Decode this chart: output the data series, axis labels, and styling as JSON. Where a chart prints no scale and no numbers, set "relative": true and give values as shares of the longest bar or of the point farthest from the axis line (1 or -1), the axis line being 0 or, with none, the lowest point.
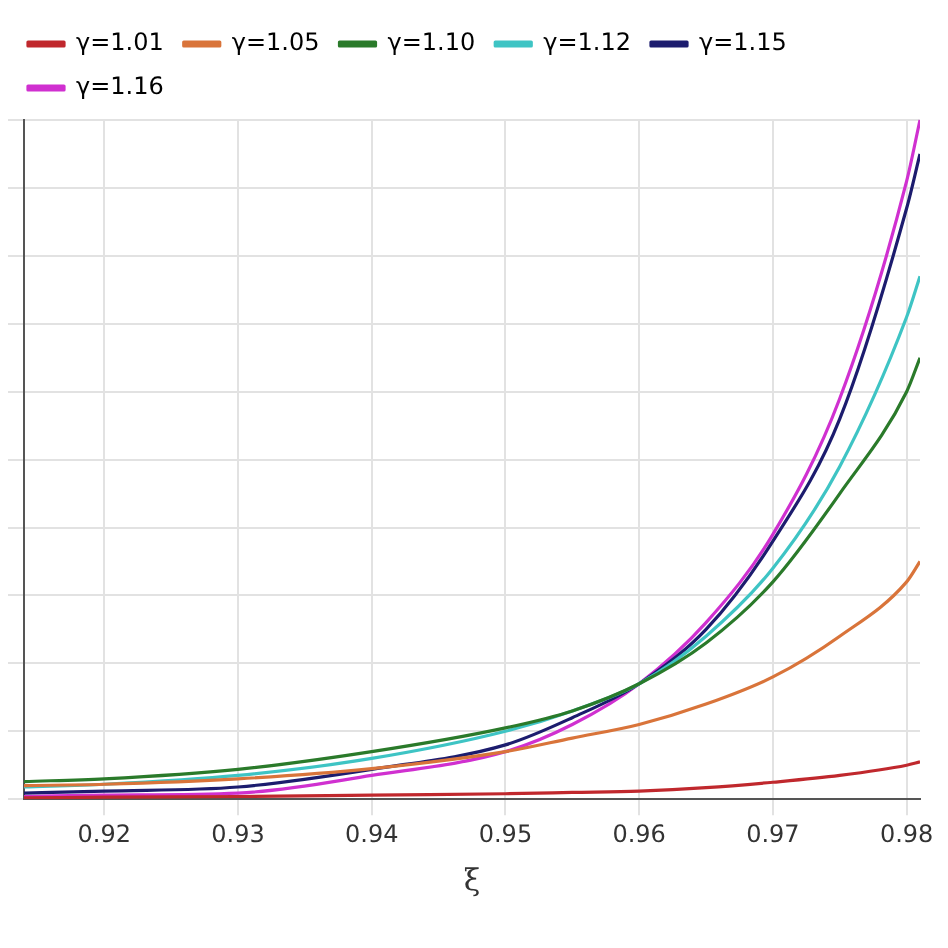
{
  "chart_data": {
    "type": "line",
    "xlabel": "ξ",
    "relative": true,
    "xlim": [
      0.914,
      0.981
    ],
    "xticks": [
      0.92,
      0.93,
      0.94,
      0.95,
      0.96,
      0.97,
      0.98
    ],
    "tick_labels": "x",
    "grid": true,
    "legend": "top left",
    "marker": "none",
    "line_style": "solid",
    "x": [
      0.914,
      0.92,
      0.93,
      0.94,
      0.95,
      0.955,
      0.96,
      0.965,
      0.97,
      0.975,
      0.98,
      0.981
    ],
    "series": [
      {
        "name": "γ=1.01",
        "color": "#c0282d",
        "values": [
          0.002,
          0.003,
          0.004,
          0.006,
          0.008,
          0.01,
          0.012,
          0.017,
          0.025,
          0.035,
          0.05,
          0.055
        ]
      },
      {
        "name": "γ=1.05",
        "color": "#d9743a",
        "values": [
          0.02,
          0.022,
          0.03,
          0.045,
          0.07,
          0.09,
          0.11,
          0.14,
          0.18,
          0.24,
          0.32,
          0.35
        ]
      },
      {
        "name": "γ=1.10",
        "color": "#2a7a2a",
        "values": [
          0.026,
          0.03,
          0.044,
          0.07,
          0.105,
          0.13,
          0.17,
          0.23,
          0.32,
          0.45,
          0.6,
          0.65
        ]
      },
      {
        "name": "γ=1.12",
        "color": "#3ec4c4",
        "values": [
          0.018,
          0.022,
          0.035,
          0.06,
          0.1,
          0.13,
          0.17,
          0.24,
          0.34,
          0.49,
          0.71,
          0.77
        ]
      },
      {
        "name": "γ=1.15",
        "color": "#1c1c6e",
        "values": [
          0.009,
          0.012,
          0.018,
          0.044,
          0.08,
          0.12,
          0.17,
          0.25,
          0.38,
          0.56,
          0.87,
          0.95
        ]
      },
      {
        "name": "γ=1.16",
        "color": "#d030d0",
        "values": [
          0.004,
          0.006,
          0.009,
          0.035,
          0.07,
          0.11,
          0.17,
          0.26,
          0.39,
          0.59,
          0.91,
          1
        ]
      }
    ]
  }
}
